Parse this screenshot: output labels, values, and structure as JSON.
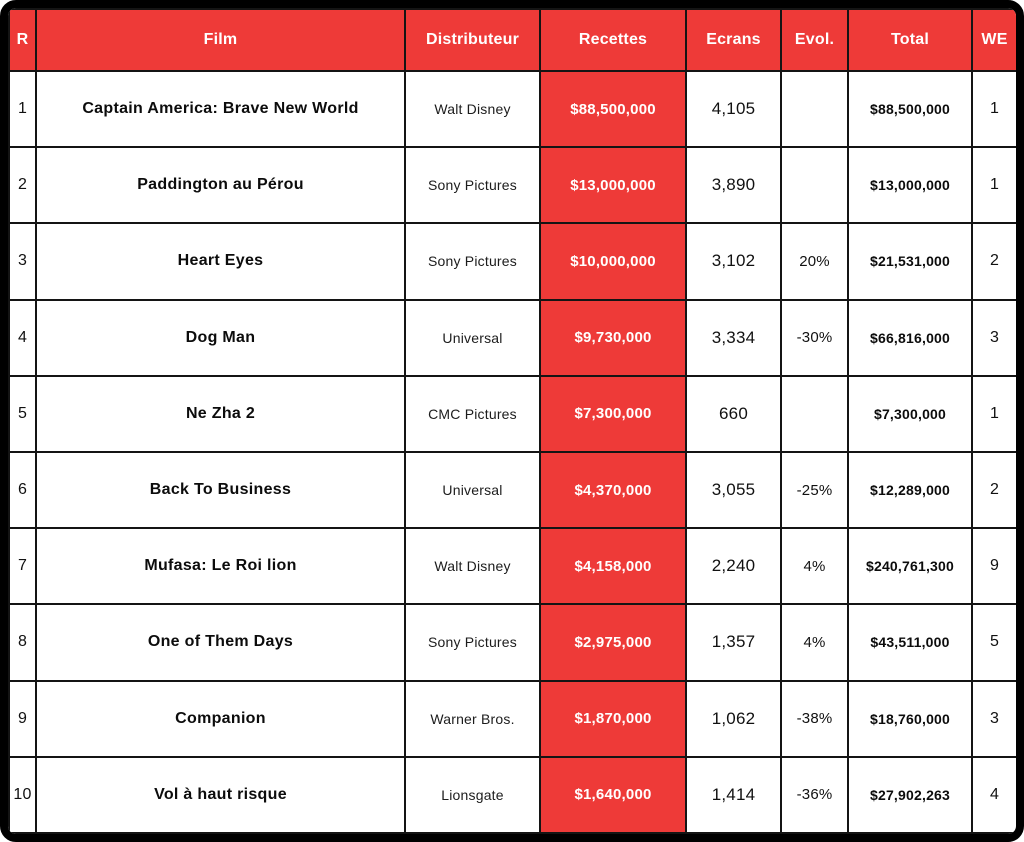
{
  "colors": {
    "accent_red": "#ee3a38",
    "grid_black": "#141414",
    "header_text": "#ffffff",
    "body_text": "#111111"
  },
  "chart_data": {
    "type": "table",
    "columns": [
      "R",
      "Film",
      "Distributeur",
      "Recettes",
      "Ecrans",
      "Evol.",
      "Total",
      "WE"
    ],
    "rows": [
      {
        "rank": "1",
        "film": "Captain America: Brave New World",
        "distributor": "Walt Disney",
        "recettes": "$88,500,000",
        "ecrans": "4,105",
        "evol": "",
        "total": "$88,500,000",
        "we": "1"
      },
      {
        "rank": "2",
        "film": "Paddington au Pérou",
        "distributor": "Sony Pictures",
        "recettes": "$13,000,000",
        "ecrans": "3,890",
        "evol": "",
        "total": "$13,000,000",
        "we": "1"
      },
      {
        "rank": "3",
        "film": "Heart Eyes",
        "distributor": "Sony Pictures",
        "recettes": "$10,000,000",
        "ecrans": "3,102",
        "evol": "20%",
        "total": "$21,531,000",
        "we": "2"
      },
      {
        "rank": "4",
        "film": "Dog Man",
        "distributor": "Universal",
        "recettes": "$9,730,000",
        "ecrans": "3,334",
        "evol": "-30%",
        "total": "$66,816,000",
        "we": "3"
      },
      {
        "rank": "5",
        "film": "Ne Zha 2",
        "distributor": "CMC Pictures",
        "recettes": "$7,300,000",
        "ecrans": "660",
        "evol": "",
        "total": "$7,300,000",
        "we": "1"
      },
      {
        "rank": "6",
        "film": "Back To Business",
        "distributor": "Universal",
        "recettes": "$4,370,000",
        "ecrans": "3,055",
        "evol": "-25%",
        "total": "$12,289,000",
        "we": "2"
      },
      {
        "rank": "7",
        "film": "Mufasa: Le Roi lion",
        "distributor": "Walt Disney",
        "recettes": "$4,158,000",
        "ecrans": "2,240",
        "evol": "4%",
        "total": "$240,761,300",
        "we": "9"
      },
      {
        "rank": "8",
        "film": "One of Them Days",
        "distributor": "Sony Pictures",
        "recettes": "$2,975,000",
        "ecrans": "1,357",
        "evol": "4%",
        "total": "$43,511,000",
        "we": "5"
      },
      {
        "rank": "9",
        "film": "Companion",
        "distributor": "Warner Bros.",
        "recettes": "$1,870,000",
        "ecrans": "1,062",
        "evol": "-38%",
        "total": "$18,760,000",
        "we": "3"
      },
      {
        "rank": "10",
        "film": "Vol à haut risque",
        "distributor": "Lionsgate",
        "recettes": "$1,640,000",
        "ecrans": "1,414",
        "evol": "-36%",
        "total": "$27,902,263",
        "we": "4"
      }
    ]
  }
}
